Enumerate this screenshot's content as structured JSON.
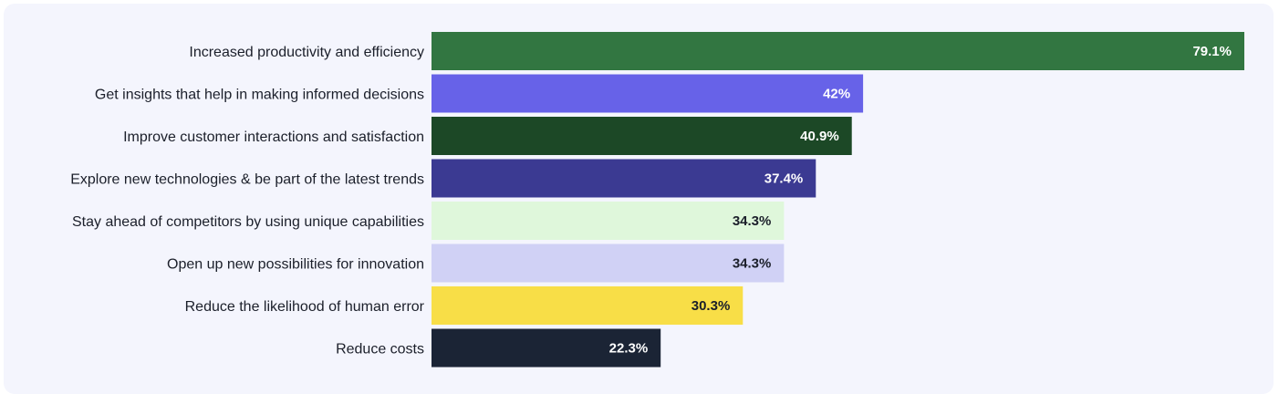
{
  "chart_data": {
    "type": "bar",
    "orientation": "horizontal",
    "title": "",
    "xlabel": "",
    "ylabel": "",
    "xlim": [
      0,
      79.1
    ],
    "grid": false,
    "categories": [
      "Increased productivity and efficiency",
      "Get insights that help in making informed decisions",
      "Improve customer interactions and satisfaction",
      "Explore new technologies & be part of the latest trends",
      "Stay ahead of competitors by using unique capabilities",
      "Open up new possibilities for innovation",
      "Reduce the likelihood of human error",
      "Reduce costs"
    ],
    "values": [
      79.1,
      42,
      40.9,
      37.4,
      34.3,
      34.3,
      30.3,
      22.3
    ],
    "value_labels": [
      "79.1%",
      "42%",
      "40.9%",
      "37.4%",
      "34.3%",
      "34.3%",
      "30.3%",
      "22.3%"
    ],
    "colors": [
      "#327641",
      "#6762e8",
      "#1c4826",
      "#3b3a92",
      "#dff7db",
      "#d0d1f5",
      "#f8de47",
      "#1b2435"
    ],
    "label_colors": [
      "#ffffff",
      "#ffffff",
      "#ffffff",
      "#ffffff",
      "#1b1f2a",
      "#1b1f2a",
      "#1b1f2a",
      "#ffffff"
    ]
  }
}
